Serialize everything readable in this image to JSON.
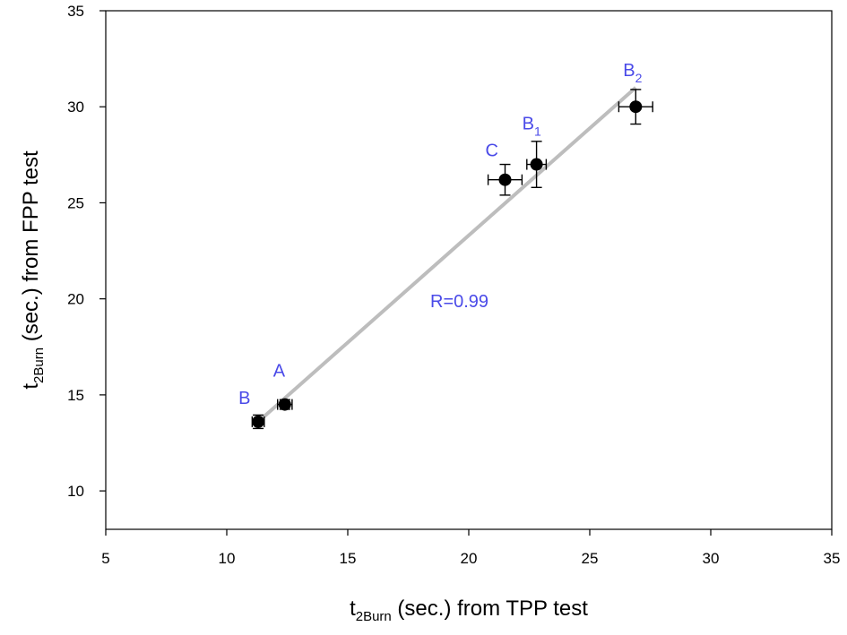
{
  "chart_data": {
    "type": "scatter",
    "title": "",
    "xlabel": {
      "base": "t",
      "sub": "2Burn",
      "rest": " (sec.) from TPP test"
    },
    "ylabel": {
      "base": "t",
      "sub": "2Burn",
      "rest": " (sec.) from FPP test"
    },
    "xlim": [
      5,
      35
    ],
    "ylim": [
      8,
      35
    ],
    "xticks": [
      5,
      10,
      15,
      20,
      25,
      30,
      35
    ],
    "yticks": [
      10,
      15,
      20,
      25,
      30,
      35
    ],
    "grid": false,
    "points": [
      {
        "label": "B",
        "label_sub": "",
        "x": 11.3,
        "y": 13.6,
        "xerr": 0.25,
        "yerr": 0.35
      },
      {
        "label": "A",
        "label_sub": "",
        "x": 12.4,
        "y": 14.5,
        "xerr": 0.3,
        "yerr": 0.25
      },
      {
        "label": "C",
        "label_sub": "",
        "x": 21.5,
        "y": 26.2,
        "xerr": 0.7,
        "yerr": 0.8
      },
      {
        "label": "B",
        "label_sub": "1",
        "x": 22.8,
        "y": 27.0,
        "xerr": 0.4,
        "yerr": 1.2
      },
      {
        "label": "B",
        "label_sub": "2",
        "x": 26.9,
        "y": 30.0,
        "xerr": 0.7,
        "yerr": 0.9
      }
    ],
    "fit_line": {
      "x": [
        11.3,
        26.9
      ],
      "y": [
        13.6,
        31.0
      ]
    },
    "annotation": "R=0.99",
    "label_color": "#4a4ae8",
    "point_color": "#000000",
    "fit_color": "#bdbdbd"
  }
}
